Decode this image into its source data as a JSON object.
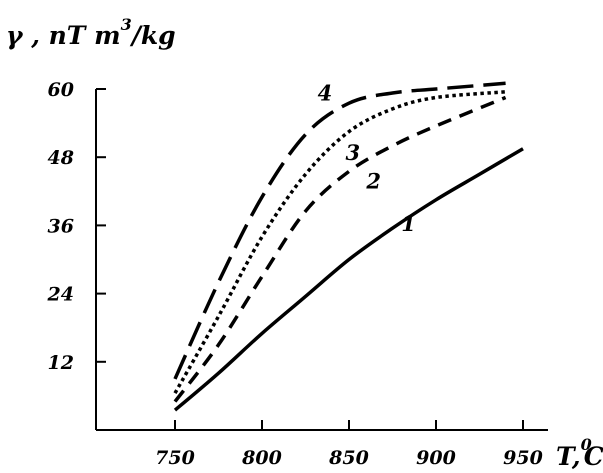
{
  "chart_data": {
    "type": "line",
    "title": "",
    "xlabel": {
      "main": "T,",
      "sup": "0",
      "unit": "C"
    },
    "ylabel": {
      "greek": "γ",
      "main": " , nT m",
      "sup": "3",
      "unit": "/kg"
    },
    "xlim": [
      700,
      1000
    ],
    "ylim": [
      0,
      60
    ],
    "xticks": [
      {
        "value": 750,
        "label": "750"
      },
      {
        "value": 800,
        "label": "800"
      },
      {
        "value": 850,
        "label": "850"
      },
      {
        "value": 900,
        "label": "900"
      },
      {
        "value": 950,
        "label": "950"
      }
    ],
    "yticks": [
      {
        "value": 12,
        "label": "12"
      },
      {
        "value": 24,
        "label": "24"
      },
      {
        "value": 36,
        "label": "36"
      },
      {
        "value": 48,
        "label": "48"
      },
      {
        "value": 60,
        "label": "60"
      }
    ],
    "grid": false,
    "legend": "none",
    "series": [
      {
        "id": "1",
        "style": "solid",
        "color": "#000000",
        "label": "1",
        "label_at": [
          880,
          35
        ],
        "x": [
          750,
          775,
          800,
          825,
          850,
          875,
          900,
          925,
          950
        ],
        "y": [
          3.5,
          10,
          17,
          23.5,
          30,
          35.5,
          40.5,
          45,
          49.5
        ]
      },
      {
        "id": "2",
        "style": "dashed",
        "color": "#000000",
        "label": "2",
        "label_at": [
          860,
          42.5
        ],
        "x": [
          750,
          775,
          800,
          825,
          850,
          875,
          900,
          940
        ],
        "y": [
          5,
          15,
          27,
          38.5,
          45.5,
          50,
          53.5,
          58.5
        ]
      },
      {
        "id": "3",
        "style": "dotted",
        "color": "#000000",
        "label": "3",
        "label_at": [
          848,
          47.5
        ],
        "x": [
          750,
          775,
          800,
          825,
          850,
          875,
          900,
          940
        ],
        "y": [
          6.5,
          20,
          34,
          45,
          52.5,
          56.5,
          58.5,
          59.5
        ]
      },
      {
        "id": "4",
        "style": "long-dash",
        "color": "#000000",
        "label": "4",
        "label_at": [
          832,
          58
        ],
        "x": [
          750,
          775,
          800,
          825,
          850,
          875,
          900,
          940
        ],
        "y": [
          9,
          26,
          41,
          52,
          57.5,
          59.3,
          60,
          61
        ]
      }
    ]
  }
}
